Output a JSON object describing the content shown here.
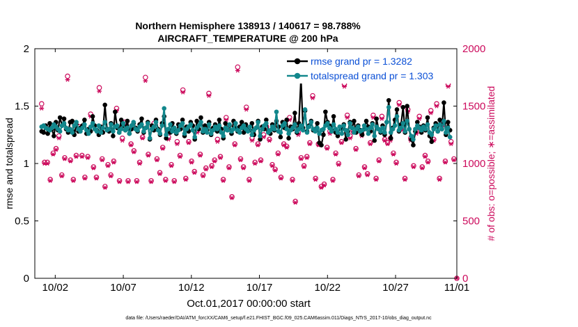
{
  "chart_data": {
    "type": "line",
    "title": "Northern Hemisphere 138913 / 140617 = 98.788%",
    "subtitle": "AIRCRAFT_TEMPERATURE @ 200 hPa",
    "xlabel": "Oct.01,2017 00:00:00 start",
    "ylabel": "rmse and totalspread",
    "ylabel_right": "# of obs: o=possible; ∗=assimilated",
    "footnote": "data file: /Users/raeder/DAI/ATM_forcXX/CAM6_setup/f.e21.FHIST_BGC.f09_025.CAM6assim.011/Diags_NTrS_2017-10/obs_diag_output.nc",
    "xlim": [
      0.5,
      31.5
    ],
    "ylim": [
      0,
      2
    ],
    "ylim_right": [
      0,
      2000
    ],
    "x_ticks": [
      {
        "v": 2,
        "label": "10/02"
      },
      {
        "v": 7,
        "label": "10/07"
      },
      {
        "v": 12,
        "label": "10/12"
      },
      {
        "v": 17,
        "label": "10/17"
      },
      {
        "v": 22,
        "label": "10/22"
      },
      {
        "v": 27,
        "label": "10/27"
      },
      {
        "v": 32,
        "label": "11/01"
      }
    ],
    "y_ticks": [
      {
        "v": 0,
        "label": "0"
      },
      {
        "v": 0.5,
        "label": "0.5"
      },
      {
        "v": 1,
        "label": "1"
      },
      {
        "v": 1.5,
        "label": "1.5"
      },
      {
        "v": 2,
        "label": "2"
      }
    ],
    "y_ticks_right": [
      {
        "v": 0,
        "label": "0"
      },
      {
        "v": 500,
        "label": "500"
      },
      {
        "v": 1000,
        "label": "1000"
      },
      {
        "v": 1500,
        "label": "1500"
      },
      {
        "v": 2000,
        "label": "2000"
      }
    ],
    "series": [
      {
        "name": "rmse grand pr = 1.3282",
        "color": "#000000",
        "values": [
          1.28,
          1.27,
          1.33,
          1.26,
          1.35,
          1.3,
          1.24,
          1.36,
          1.29,
          1.4,
          1.33,
          1.39,
          1.3,
          1.27,
          1.36,
          1.37,
          1.25,
          1.34,
          1.28,
          1.31,
          1.33,
          1.38,
          1.26,
          1.3,
          1.28,
          1.41,
          1.33,
          1.29,
          1.25,
          1.32,
          1.27,
          1.51,
          1.3,
          1.28,
          1.35,
          1.24,
          1.45,
          1.31,
          1.27,
          1.38,
          1.33,
          1.29,
          1.37,
          1.26,
          1.3,
          1.35,
          1.31,
          1.28,
          1.34,
          1.39,
          1.27,
          1.31,
          1.36,
          1.21,
          1.33,
          1.29,
          1.38,
          1.3,
          1.25,
          1.35,
          1.41,
          1.22,
          1.29,
          1.27,
          1.35,
          1.29,
          1.26,
          1.34,
          1.3,
          1.38,
          1.24,
          1.32,
          1.28,
          1.36,
          1.33,
          1.21,
          1.37,
          1.3,
          1.4,
          1.27,
          1.33,
          1.29,
          1.36,
          1.25,
          1.31,
          1.34,
          1.28,
          1.38,
          1.3,
          1.22,
          1.35,
          1.29,
          1.33,
          1.26,
          1.37,
          1.31,
          1.28,
          1.32,
          1.36,
          1.27,
          1.34,
          1.3,
          1.29,
          1.35,
          1.25,
          1.31,
          1.37,
          1.21,
          1.32,
          1.3,
          1.38,
          1.28,
          1.26,
          1.34,
          1.29,
          1.37,
          1.32,
          1.23,
          1.36,
          1.31,
          1.38,
          1.22,
          1.32,
          1.3,
          1.44,
          1.27,
          1.35,
          1.74,
          1.31,
          1.46,
          1.28,
          1.33,
          1.37,
          1.29,
          1.3,
          1.35,
          1.18,
          1.16,
          1.25,
          1.45,
          1.36,
          1.33,
          1.29,
          1.41,
          1.27,
          1.24,
          1.32,
          1.3,
          1.34,
          1.21,
          1.28,
          1.36,
          1.31,
          1.37,
          1.27,
          1.33,
          1.29,
          1.25,
          1.3,
          1.37,
          1.32,
          1.28,
          1.35,
          1.2,
          1.39,
          1.3,
          1.27,
          1.33,
          1.25,
          1.36,
          1.55,
          1.22,
          1.31,
          1.38,
          1.47,
          1.28,
          1.34,
          1.49,
          1.27,
          1.5,
          1.3,
          1.21,
          1.16,
          1.28,
          1.36,
          1.32,
          1.27,
          1.33,
          1.29,
          1.4,
          1.24,
          1.19,
          1.31,
          1.35,
          1.28,
          1.38,
          1.3,
          1.53,
          1.25,
          1.36,
          1.29
        ]
      },
      {
        "name": "totalspread grand pr = 1.303",
        "color": "#12878c",
        "values": [
          1.32,
          1.33,
          1.31,
          1.3,
          1.29,
          1.31,
          1.34,
          1.32,
          1.3,
          1.28,
          1.33,
          1.35,
          1.31,
          1.29,
          1.3,
          1.27,
          1.33,
          1.36,
          1.3,
          1.28,
          1.31,
          1.34,
          1.29,
          1.26,
          1.32,
          1.35,
          1.3,
          1.28,
          1.33,
          1.27,
          1.31,
          1.36,
          1.29,
          1.3,
          1.34,
          1.28,
          1.32,
          1.33,
          1.27,
          1.3,
          1.35,
          1.29,
          1.31,
          1.26,
          1.33,
          1.36,
          1.3,
          1.29,
          1.32,
          1.34,
          1.28,
          1.31,
          1.35,
          1.22,
          1.3,
          1.32,
          1.36,
          1.29,
          1.26,
          1.33,
          1.48,
          1.25,
          1.3,
          1.34,
          1.28,
          1.31,
          1.27,
          1.29,
          1.33,
          1.35,
          1.26,
          1.3,
          1.32,
          1.34,
          1.29,
          1.23,
          1.31,
          1.33,
          1.36,
          1.28,
          1.3,
          1.27,
          1.34,
          1.26,
          1.29,
          1.32,
          1.3,
          1.33,
          1.27,
          1.24,
          1.31,
          1.29,
          1.34,
          1.28,
          1.3,
          1.35,
          1.29,
          1.27,
          1.31,
          1.33,
          1.3,
          1.28,
          1.32,
          1.25,
          1.29,
          1.31,
          1.36,
          1.24,
          1.3,
          1.33,
          1.35,
          1.27,
          1.29,
          1.32,
          1.3,
          1.45,
          1.28,
          1.27,
          1.33,
          1.35,
          1.3,
          1.26,
          1.29,
          1.31,
          1.34,
          1.28,
          1.3,
          1.33,
          1.29,
          1.47,
          1.27,
          1.32,
          1.36,
          1.3,
          1.28,
          1.31,
          1.26,
          1.29,
          1.3,
          1.33,
          1.35,
          1.31,
          1.28,
          1.34,
          1.3,
          1.27,
          1.32,
          1.26,
          1.33,
          1.29,
          1.25,
          1.35,
          1.31,
          1.27,
          1.3,
          1.32,
          1.28,
          1.29,
          1.33,
          1.3,
          1.26,
          1.31,
          1.34,
          1.24,
          1.32,
          1.3,
          1.28,
          1.31,
          1.27,
          1.36,
          1.49,
          1.27,
          1.3,
          1.33,
          1.41,
          1.29,
          1.31,
          1.35,
          1.28,
          1.37,
          1.3,
          1.24,
          1.21,
          1.3,
          1.33,
          1.31,
          1.29,
          1.32,
          1.3,
          1.34,
          1.27,
          1.25,
          1.3,
          1.33,
          1.28,
          1.34,
          1.3,
          1.37,
          1.27,
          1.31,
          1.23
        ]
      }
    ],
    "obs_possible": [
      1520,
      1010,
      1010,
      860,
      1090,
      1130,
      1240,
      900,
      1050,
      1760,
      1030,
      860,
      1070,
      1320,
      1070,
      880,
      1060,
      1430,
      970,
      880,
      1660,
      1040,
      800,
      990,
      900,
      1020,
      1480,
      850,
      1220,
      1360,
      850,
      1170,
      1110,
      850,
      1010,
      1230,
      1750,
      1080,
      850,
      1350,
      1040,
      920,
      1140,
      860,
      1230,
      990,
      850,
      1190,
      1070,
      1640,
      870,
      1190,
      1020,
      930,
      1290,
      1080,
      900,
      960,
      1610,
      980,
      1030,
      1210,
      1060,
      860,
      1400,
      970,
      710,
      1170,
      1840,
      1040,
      970,
      1490,
      860,
      1220,
      1010,
      1170,
      1030,
      1250,
      1320,
      1210,
      990,
      950,
      1090,
      880,
      1170,
      1150,
      1400,
      860,
      670,
      1270,
      1050,
      980,
      1060,
      1180,
      1590,
      870,
      1170,
      800,
      820,
      1140,
      1280,
      860,
      1090,
      1000,
      1190,
      1690,
      1420,
      1240,
      1290,
      1130,
      900,
      1260,
      970,
      910,
      1180,
      1420,
      870,
      1030,
      1410,
      1210,
      1180,
      1220,
      1090,
      1010,
      1530,
      1310,
      870,
      1470,
      1220,
      980,
      1280,
      1410,
      970,
      1070,
      1020,
      1460,
      1210,
      1520,
      870,
      1340,
      1020,
      1690,
      1190,
      1040,
      0
    ],
    "obs_assimilated": [
      1480,
      1000,
      1000,
      850,
      1080,
      1120,
      1220,
      890,
      1040,
      1730,
      1020,
      850,
      1060,
      1300,
      1060,
      870,
      1050,
      1410,
      960,
      870,
      1630,
      1030,
      790,
      980,
      890,
      1010,
      1460,
      840,
      1200,
      1340,
      840,
      1160,
      1100,
      840,
      1000,
      1220,
      1720,
      1070,
      840,
      1330,
      1030,
      910,
      1130,
      850,
      1210,
      980,
      840,
      1170,
      1060,
      1620,
      860,
      1180,
      1010,
      920,
      1270,
      1070,
      890,
      950,
      1590,
      970,
      1020,
      1190,
      1050,
      850,
      1380,
      960,
      700,
      1160,
      1810,
      1030,
      960,
      1470,
      850,
      1200,
      1000,
      1160,
      1020,
      1230,
      1300,
      1200,
      980,
      940,
      1080,
      870,
      1160,
      1140,
      1380,
      850,
      660,
      1250,
      1040,
      970,
      1050,
      1170,
      1570,
      860,
      1160,
      790,
      810,
      1130,
      1260,
      850,
      1080,
      990,
      1180,
      1670,
      1400,
      1220,
      1270,
      1120,
      890,
      1240,
      960,
      900,
      1170,
      1400,
      860,
      1020,
      1390,
      1200,
      1170,
      1200,
      1080,
      1000,
      1510,
      1290,
      860,
      1450,
      1200,
      970,
      1260,
      1390,
      960,
      1060,
      1010,
      1440,
      1200,
      1500,
      860,
      1320,
      1010,
      1670,
      1170,
      1030,
      0
    ]
  }
}
